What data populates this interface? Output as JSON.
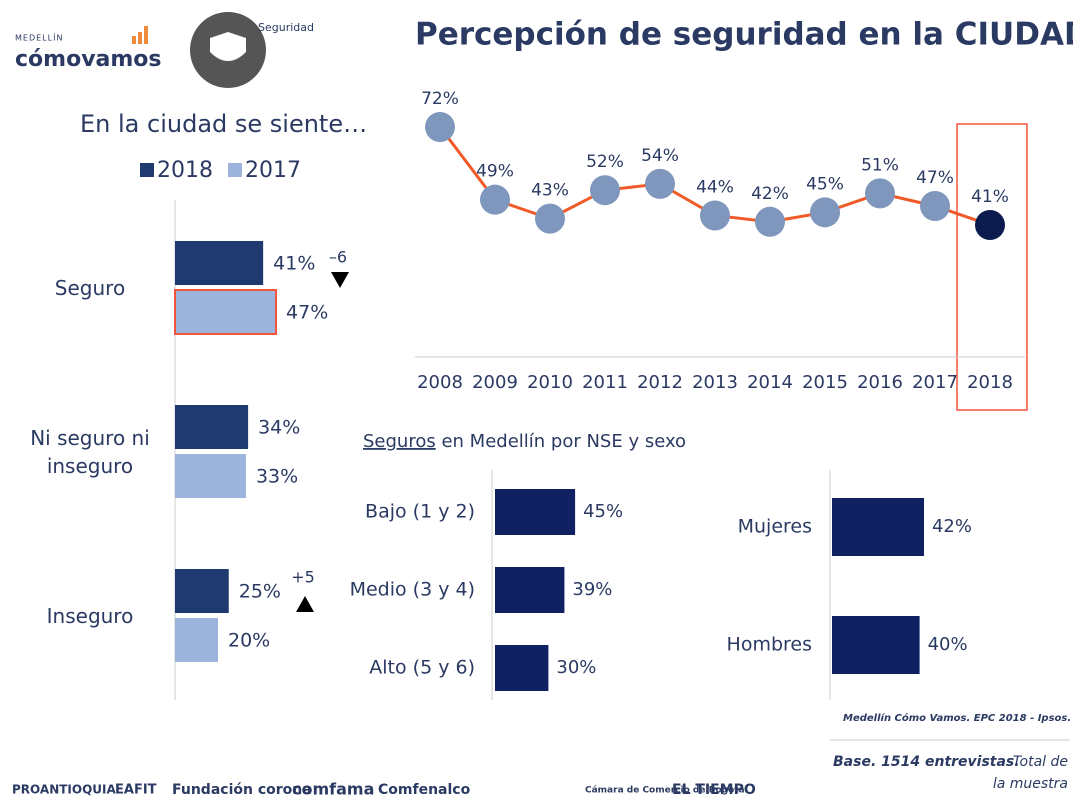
{
  "header": {
    "logo_small": "MEDELLÍN",
    "logo_main": "cómovamos",
    "section": "Seguridad"
  },
  "chart_data": [
    {
      "type": "hbar_grouped",
      "title": "En la ciudad se siente…",
      "categories": [
        "Seguro",
        "Ni seguro ni inseguro",
        "Inseguro"
      ],
      "series": [
        {
          "name": "2018",
          "color": "#1f3a6e",
          "values": [
            41,
            34,
            25
          ],
          "value_labels": [
            "41%",
            "34%",
            "25%"
          ]
        },
        {
          "name": "2017",
          "color": "#9cb4dc",
          "values": [
            47,
            33,
            20
          ],
          "value_labels": [
            "47%",
            "33%",
            "20%"
          ]
        }
      ],
      "annotations": [
        "–6",
        "+5"
      ]
    },
    {
      "type": "line",
      "title": "Percepción de seguridad en la CIUDAD",
      "categories": [
        "2008",
        "2009",
        "2010",
        "2011",
        "2012",
        "2013",
        "2014",
        "2015",
        "2016",
        "2017",
        "2018"
      ],
      "values": [
        72,
        49,
        43,
        52,
        54,
        44,
        42,
        45,
        51,
        47,
        41
      ],
      "value_labels": [
        "72%",
        "49%",
        "43%",
        "52%",
        "54%",
        "44%",
        "42%",
        "45%",
        "51%",
        "47%",
        "41%"
      ],
      "color": "#f05a28",
      "marker_color": "#7f96bd",
      "highlight_color": "#0b1b4d"
    },
    {
      "type": "hbar",
      "title_parts": [
        "Seguros",
        " en Medellín por NSE y sexo"
      ],
      "categories": [
        "Bajo (1 y 2)",
        "Medio (3 y 4)",
        "Alto (5 y 6)"
      ],
      "values": [
        45,
        39,
        30
      ],
      "value_labels": [
        "45%",
        "39%",
        "30%"
      ],
      "color": "#0f2160"
    },
    {
      "type": "hbar",
      "categories": [
        "Mujeres",
        "Hombres"
      ],
      "values": [
        42,
        40
      ],
      "value_labels": [
        "42%",
        "40%"
      ],
      "color": "#0f2160"
    }
  ],
  "footer": {
    "source": "Medellín Cómo Vamos. EPC 2018 - Ipsos.",
    "base": "Base. 1514 entrevistas.",
    "base_note": [
      "Total de",
      "la muestra"
    ],
    "logos": [
      "PROANTIOQUIA",
      "EAFIT",
      "Fundación corona",
      "comfama",
      "Comfenalco",
      "Cámara de Comercio de Bogotá",
      "EL TIEMPO"
    ]
  }
}
